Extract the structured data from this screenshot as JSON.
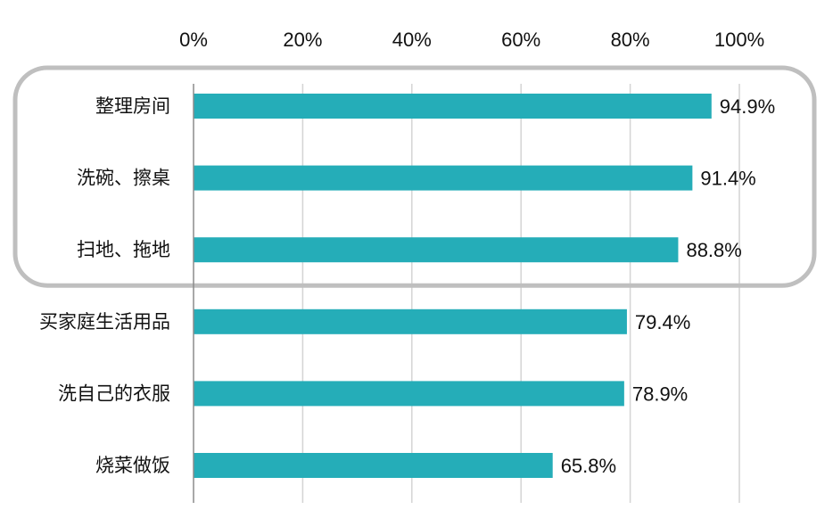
{
  "chart_data": {
    "type": "bar",
    "orientation": "horizontal",
    "title": "",
    "xlabel": "",
    "ylabel": "",
    "xlim": [
      0,
      100
    ],
    "x_ticks": [
      "0%",
      "20%",
      "40%",
      "60%",
      "80%",
      "100%"
    ],
    "x_tick_values": [
      0,
      20,
      40,
      60,
      80,
      100
    ],
    "x_axis_position": "top",
    "grid": true,
    "categories": [
      "整理房间",
      "洗碗、擦桌",
      "扫地、拖地",
      "买家庭生活用品",
      "洗自己的衣服",
      "烧菜做饭"
    ],
    "values": [
      94.9,
      91.4,
      88.8,
      79.4,
      78.9,
      65.8
    ],
    "value_labels": [
      "94.9%",
      "91.4%",
      "88.8%",
      "79.4%",
      "78.9%",
      "65.8%"
    ],
    "highlight": {
      "categories": [
        "整理房间",
        "洗碗、擦桌",
        "扫地、拖地"
      ],
      "style": "rounded-outline"
    },
    "colors": {
      "bar": "#25adb8",
      "grid": "#d4d4d4",
      "axis": "#8c8c8c",
      "highlight": "#bfbfbf"
    }
  }
}
